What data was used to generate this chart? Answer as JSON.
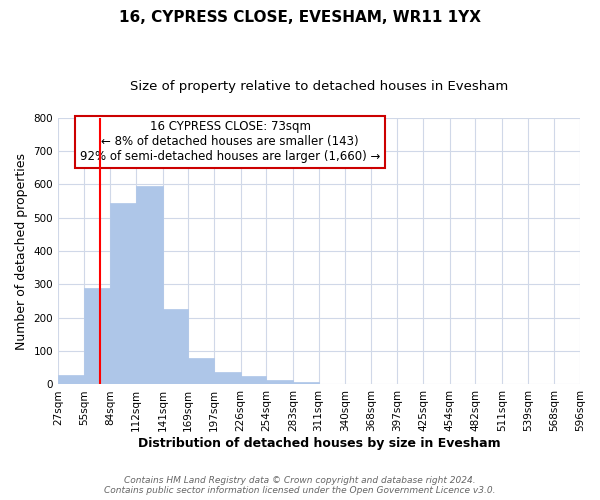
{
  "title": "16, CYPRESS CLOSE, EVESHAM, WR11 1YX",
  "subtitle": "Size of property relative to detached houses in Evesham",
  "xlabel": "Distribution of detached houses by size in Evesham",
  "ylabel": "Number of detached properties",
  "bar_edges": [
    27,
    55,
    84,
    112,
    141,
    169,
    197,
    226,
    254,
    283,
    311,
    340,
    368,
    397,
    425,
    454,
    482,
    511,
    539,
    568,
    596
  ],
  "bar_heights": [
    28,
    290,
    545,
    595,
    225,
    78,
    37,
    25,
    12,
    8,
    0,
    0,
    0,
    0,
    0,
    0,
    0,
    0,
    0,
    0
  ],
  "bar_color": "#aec6e8",
  "bar_edgecolor": "#aec6e8",
  "red_line_x": 73,
  "ylim": [
    0,
    800
  ],
  "yticks": [
    0,
    100,
    200,
    300,
    400,
    500,
    600,
    700,
    800
  ],
  "xtick_labels": [
    "27sqm",
    "55sqm",
    "84sqm",
    "112sqm",
    "141sqm",
    "169sqm",
    "197sqm",
    "226sqm",
    "254sqm",
    "283sqm",
    "311sqm",
    "340sqm",
    "368sqm",
    "397sqm",
    "425sqm",
    "454sqm",
    "482sqm",
    "511sqm",
    "539sqm",
    "568sqm",
    "596sqm"
  ],
  "annotation_title": "16 CYPRESS CLOSE: 73sqm",
  "annotation_line1": "← 8% of detached houses are smaller (143)",
  "annotation_line2": "92% of semi-detached houses are larger (1,660) →",
  "annotation_box_color": "#ffffff",
  "annotation_box_edgecolor": "#cc0000",
  "footer_line1": "Contains HM Land Registry data © Crown copyright and database right 2024.",
  "footer_line2": "Contains public sector information licensed under the Open Government Licence v3.0.",
  "background_color": "#ffffff",
  "grid_color": "#d0d8e8",
  "title_fontsize": 11,
  "subtitle_fontsize": 9.5,
  "axis_label_fontsize": 9,
  "tick_fontsize": 7.5,
  "annotation_fontsize": 8.5,
  "footer_fontsize": 6.5
}
